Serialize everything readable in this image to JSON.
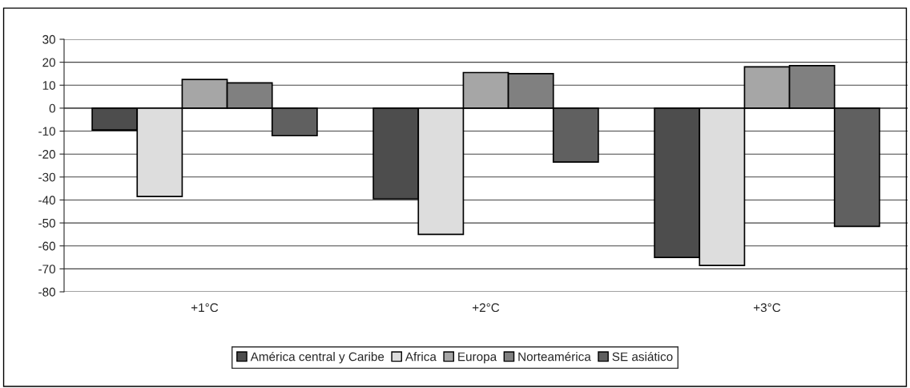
{
  "chart_data": {
    "type": "bar",
    "categories": [
      "+1°C",
      "+2°C",
      "+3°C"
    ],
    "series": [
      {
        "name": "América central y Caribe",
        "color": "#4d4d4d",
        "values": [
          -9.5,
          -39.5,
          -65
        ]
      },
      {
        "name": "Africa",
        "color": "#dddddd",
        "values": [
          -38.5,
          -55,
          -68.5
        ]
      },
      {
        "name": "Europa",
        "color": "#a6a6a6",
        "values": [
          12.5,
          15.5,
          18
        ]
      },
      {
        "name": "Norteamérica",
        "color": "#808080",
        "values": [
          11,
          15,
          18.5
        ]
      },
      {
        "name": "SE asiático",
        "color": "#606060",
        "values": [
          -12,
          -23.5,
          -51.5
        ]
      }
    ],
    "ylim": [
      -80,
      30
    ],
    "yticks": [
      -80,
      -70,
      -60,
      -50,
      -40,
      -30,
      -20,
      -10,
      0,
      10,
      20,
      30
    ],
    "grid": "y",
    "legend": "bottom"
  }
}
